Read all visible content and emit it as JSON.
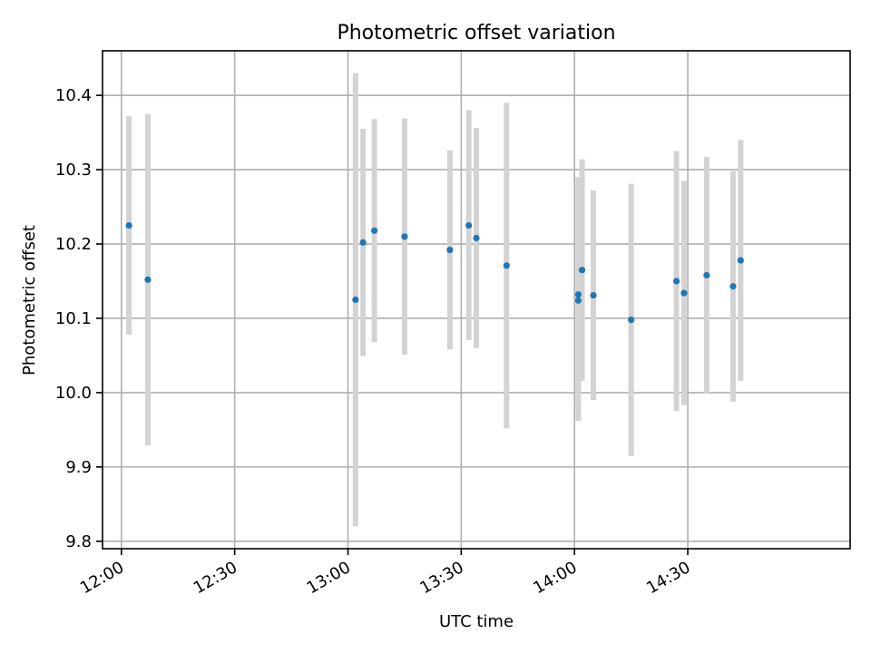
{
  "chart_data": {
    "type": "scatter",
    "title": "Photometric offset variation",
    "xlabel": "UTC time",
    "ylabel": "Photometric offset",
    "xlim": [
      "11:55",
      "15:13"
    ],
    "ylim": [
      9.79,
      10.46
    ],
    "x_ticks": [
      "12:00",
      "12:30",
      "13:00",
      "13:30",
      "14:00",
      "14:30"
    ],
    "y_ticks": [
      9.8,
      9.9,
      10.0,
      10.1,
      10.2,
      10.3,
      10.4
    ],
    "grid": true,
    "colors": {
      "point": "#1f77b4",
      "errorbar": "#d3d3d3"
    },
    "points": [
      {
        "x": "12:02",
        "y": 10.225,
        "ylow": 10.078,
        "yhigh": 10.372
      },
      {
        "x": "12:07",
        "y": 10.152,
        "ylow": 9.929,
        "yhigh": 10.375
      },
      {
        "x": "13:02",
        "y": 10.125,
        "ylow": 9.82,
        "yhigh": 10.43
      },
      {
        "x": "13:04",
        "y": 10.202,
        "ylow": 10.049,
        "yhigh": 10.355
      },
      {
        "x": "13:07",
        "y": 10.218,
        "ylow": 10.068,
        "yhigh": 10.368
      },
      {
        "x": "13:15",
        "y": 10.21,
        "ylow": 10.051,
        "yhigh": 10.369
      },
      {
        "x": "13:27",
        "y": 10.192,
        "ylow": 10.058,
        "yhigh": 10.326
      },
      {
        "x": "13:32",
        "y": 10.225,
        "ylow": 10.071,
        "yhigh": 10.38
      },
      {
        "x": "13:34",
        "y": 10.208,
        "ylow": 10.06,
        "yhigh": 10.356
      },
      {
        "x": "13:42",
        "y": 10.171,
        "ylow": 9.952,
        "yhigh": 10.39
      },
      {
        "x": "14:01",
        "y": 10.132,
        "ylow": 9.975,
        "yhigh": 10.29
      },
      {
        "x": "14:01",
        "y": 10.124,
        "ylow": 9.962,
        "yhigh": 10.286
      },
      {
        "x": "14:02",
        "y": 10.165,
        "ylow": 10.016,
        "yhigh": 10.314
      },
      {
        "x": "14:05",
        "y": 10.131,
        "ylow": 9.99,
        "yhigh": 10.272
      },
      {
        "x": "14:15",
        "y": 10.098,
        "ylow": 9.915,
        "yhigh": 10.281
      },
      {
        "x": "14:27",
        "y": 10.15,
        "ylow": 9.975,
        "yhigh": 10.325
      },
      {
        "x": "14:29",
        "y": 10.134,
        "ylow": 9.983,
        "yhigh": 10.285
      },
      {
        "x": "14:35",
        "y": 10.158,
        "ylow": 9.999,
        "yhigh": 10.317
      },
      {
        "x": "14:42",
        "y": 10.143,
        "ylow": 9.988,
        "yhigh": 10.298
      },
      {
        "x": "14:44",
        "y": 10.178,
        "ylow": 10.016,
        "yhigh": 10.34
      }
    ]
  }
}
